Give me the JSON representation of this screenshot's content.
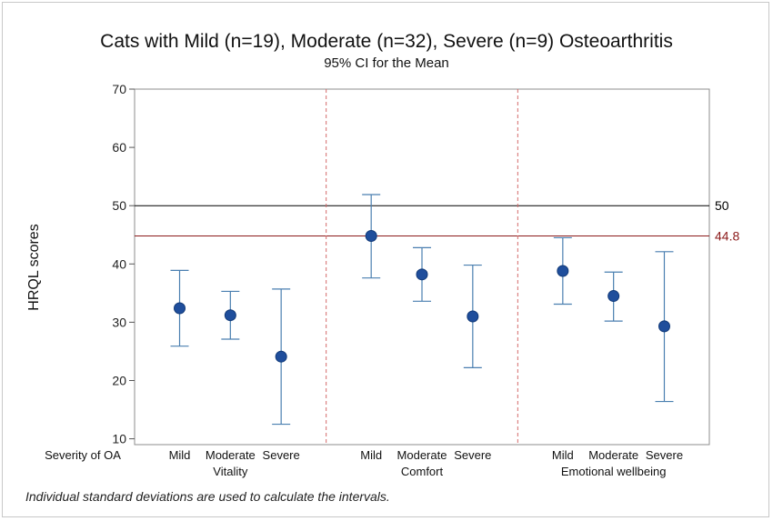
{
  "chart_data": {
    "type": "interval",
    "title": "Cats with Mild (n=19), Moderate (n=32), Severe (n=9) Osteoarthritis",
    "subtitle": "95% CI for the Mean",
    "ylabel": "HRQL scores",
    "ylim": [
      9,
      70
    ],
    "yticks": [
      10,
      20,
      30,
      40,
      50,
      60,
      70
    ],
    "x_row_label": "Severity of OA",
    "groups": [
      {
        "name": "Vitality",
        "points": [
          {
            "category": "Mild",
            "mean": 32.4,
            "lower": 25.9,
            "upper": 38.9
          },
          {
            "category": "Moderate",
            "mean": 31.2,
            "lower": 27.1,
            "upper": 35.3
          },
          {
            "category": "Severe",
            "mean": 24.1,
            "lower": 12.5,
            "upper": 35.7
          }
        ]
      },
      {
        "name": "Comfort",
        "points": [
          {
            "category": "Mild",
            "mean": 44.8,
            "lower": 37.6,
            "upper": 51.9
          },
          {
            "category": "Moderate",
            "mean": 38.2,
            "lower": 33.6,
            "upper": 42.8
          },
          {
            "category": "Severe",
            "mean": 31.0,
            "lower": 22.2,
            "upper": 39.8
          }
        ]
      },
      {
        "name": "Emotional wellbeing",
        "points": [
          {
            "category": "Mild",
            "mean": 38.8,
            "lower": 33.1,
            "upper": 44.5
          },
          {
            "category": "Moderate",
            "mean": 34.5,
            "lower": 30.2,
            "upper": 38.6
          },
          {
            "category": "Severe",
            "mean": 29.3,
            "lower": 16.4,
            "upper": 42.1
          }
        ]
      }
    ],
    "reference_lines": [
      {
        "value": 50,
        "label": "50",
        "color": "#000000"
      },
      {
        "value": 44.8,
        "label": "44.8",
        "color": "#8b1a1a"
      }
    ],
    "footnote": "Individual standard deviations are used to calculate the intervals.",
    "colors": {
      "marker": "#1f4e9c",
      "interval": "#4a7fb0",
      "divider": "#d46a6a"
    }
  }
}
